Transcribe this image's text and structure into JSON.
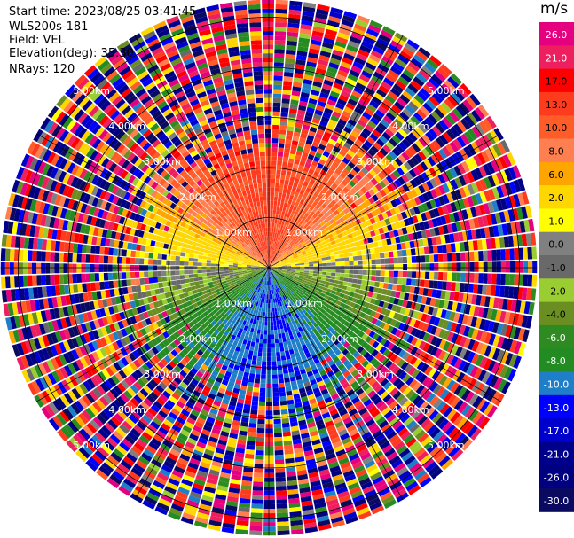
{
  "header": {
    "start_time": "Start time: 2023/08/25 03:41:45",
    "instrument": "WLS200s-181",
    "field": "Field: VEL",
    "elevation": "Elevation(deg): 35.30",
    "nrays": "NRays: 120"
  },
  "colorbar": {
    "title": "m/s",
    "ticks": [
      "26.0",
      "21.0",
      "17.0",
      "13.0",
      "10.0",
      "8.0",
      "6.0",
      "2.0",
      "1.0",
      "0.0",
      "-1.0",
      "-2.0",
      "-4.0",
      "-6.0",
      "-8.0",
      "-10.0",
      "-13.0",
      "-17.0",
      "-21.0",
      "-26.0",
      "-30.0"
    ],
    "colors": [
      "#e4007f",
      "#ee1f5f",
      "#ff0000",
      "#ff3b1e",
      "#ff5c28",
      "#ff7f50",
      "#ffa500",
      "#ffd700",
      "#ffff00",
      "#808080",
      "#696969",
      "#9acd32",
      "#6b8e23",
      "#2e8b22",
      "#228b22",
      "#1e7fc8",
      "#0000ff",
      "#0000cd",
      "#00008b",
      "#000080",
      "#0a0a60"
    ]
  },
  "chart_data": {
    "type": "heatmap",
    "projection": "polar-ppi",
    "field": "VEL",
    "units": "m/s",
    "elevation_deg": 35.3,
    "n_rays": 120,
    "range_rings_km": [
      1,
      2,
      3,
      4,
      5
    ],
    "ring_label_format": "{r}.00km",
    "ring_labels": [
      "1.00km",
      "2.00km",
      "3.00km",
      "4.00km",
      "5.00km"
    ],
    "max_range_km": 5.35,
    "valid_range_km": 3.1,
    "azimuth_pattern": [
      {
        "azimuth_deg": 0,
        "velocity_ms": 14.0
      },
      {
        "azimuth_deg": 90,
        "velocity_ms": 0.0
      },
      {
        "azimuth_deg": 180,
        "velocity_ms": -10.0
      },
      {
        "azimuth_deg": 270,
        "velocity_ms": 0.0
      }
    ],
    "color_scale_min": -30.0,
    "color_scale_max": 30.0,
    "spokes_deg": [
      0,
      30,
      60,
      90,
      120,
      150,
      180,
      210,
      240,
      270,
      300,
      330
    ]
  }
}
